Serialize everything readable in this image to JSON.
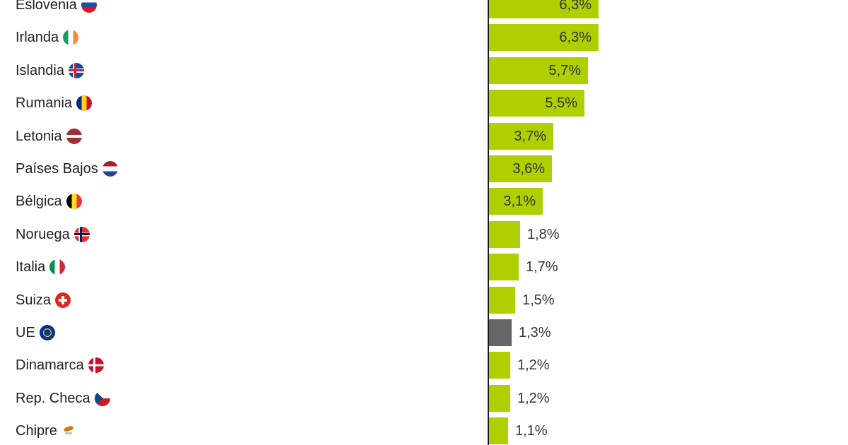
{
  "chart_data": {
    "type": "bar",
    "orientation": "horizontal",
    "title": "",
    "xlabel": "",
    "ylabel": "",
    "grid": false,
    "categories": [
      "Eslovenia",
      "Irlanda",
      "Islandia",
      "Rumania",
      "Letonia",
      "Países Bajos",
      "Bélgica",
      "Noruega",
      "Italia",
      "Suiza",
      "UE",
      "Dinamarca",
      "Rep. Checa",
      "Chipre"
    ],
    "values": [
      6.3,
      6.3,
      5.7,
      5.5,
      3.7,
      3.6,
      3.1,
      1.8,
      1.7,
      1.5,
      1.3,
      1.2,
      1.2,
      1.1
    ],
    "value_labels": [
      "6,3%",
      "6,3%",
      "5,7%",
      "5,5%",
      "3,7%",
      "3,6%",
      "3,1%",
      "1,8%",
      "1,7%",
      "1,5%",
      "1,3%",
      "1,2%",
      "1,2%",
      "1,1%"
    ],
    "highlight": {
      "category": "UE",
      "color": "#666666"
    },
    "bar_color": "#afcf00",
    "unit": "%"
  },
  "rows": [
    {
      "name": "Eslovenia",
      "value": "6,3%",
      "flag": "slovenia"
    },
    {
      "name": "Irlanda",
      "value": "6,3%",
      "flag": "ireland"
    },
    {
      "name": "Islandia",
      "value": "5,7%",
      "flag": "iceland"
    },
    {
      "name": "Rumania",
      "value": "5,5%",
      "flag": "romania"
    },
    {
      "name": "Letonia",
      "value": "3,7%",
      "flag": "latvia"
    },
    {
      "name": "Países Bajos",
      "value": "3,6%",
      "flag": "netherlands"
    },
    {
      "name": "Bélgica",
      "value": "3,1%",
      "flag": "belgium"
    },
    {
      "name": "Noruega",
      "value": "1,8%",
      "flag": "norway"
    },
    {
      "name": "Italia",
      "value": "1,7%",
      "flag": "italy"
    },
    {
      "name": "Suiza",
      "value": "1,5%",
      "flag": "switzerland"
    },
    {
      "name": "UE",
      "value": "1,3%",
      "flag": "eu"
    },
    {
      "name": "Dinamarca",
      "value": "1,2%",
      "flag": "denmark"
    },
    {
      "name": "Rep. Checa",
      "value": "1,2%",
      "flag": "czechia"
    },
    {
      "name": "Chipre",
      "value": "1,1%",
      "flag": "cyprus"
    }
  ]
}
